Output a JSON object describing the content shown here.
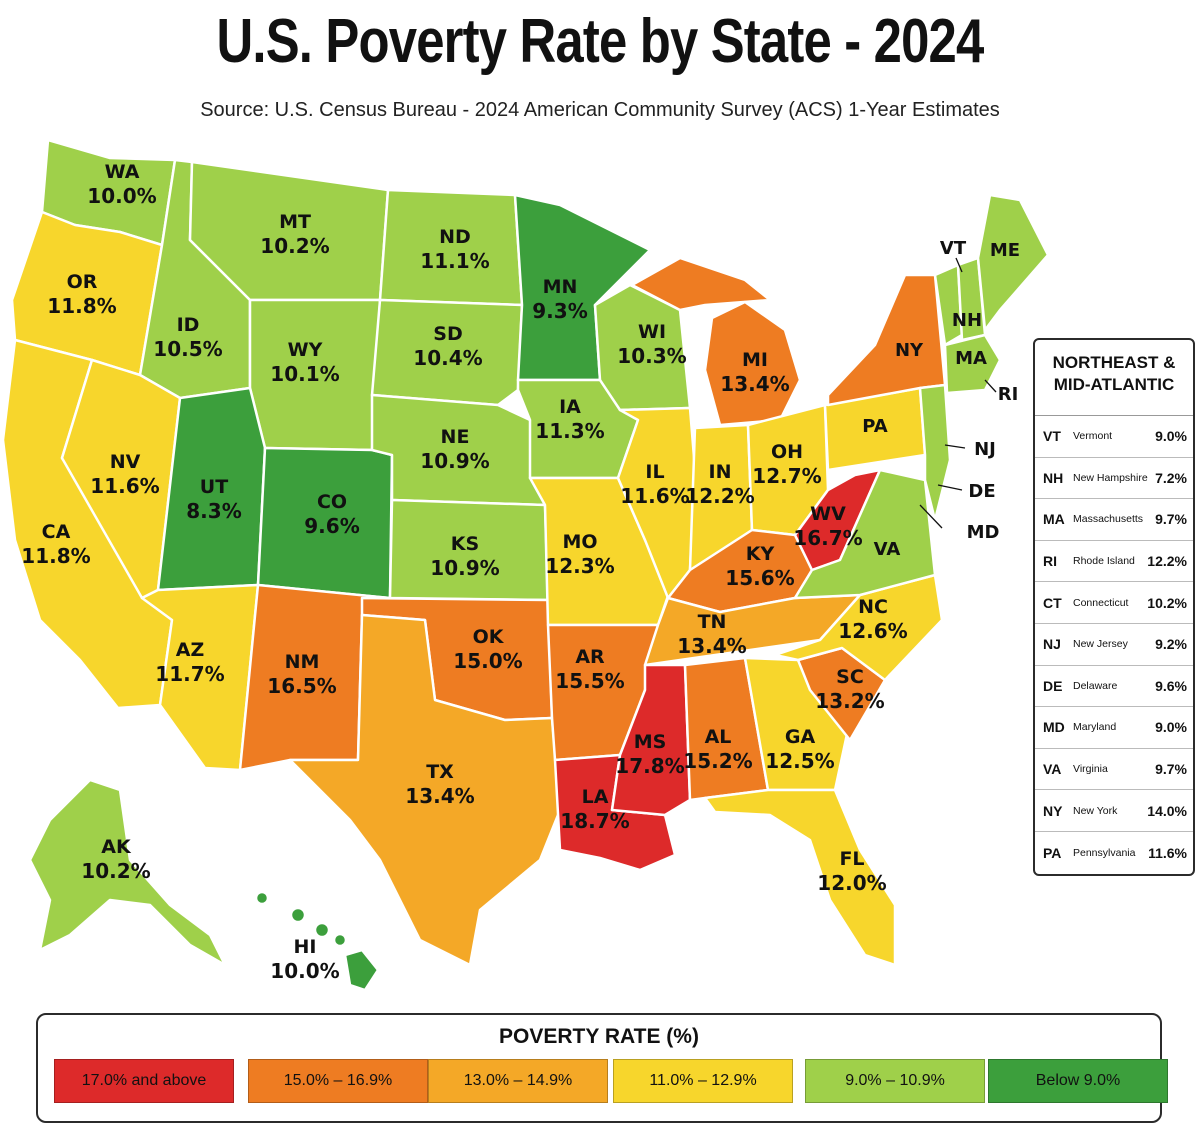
{
  "title": "U.S. Poverty Rate by State - 2024",
  "subtitle": "Source: U.S. Census Bureau - 2024 American Community Survey (ACS) 1-Year Estimates",
  "colors": {
    "c17": "#dd2a2a",
    "c15": "#ee7c22",
    "c13": "#f4a827",
    "c11": "#f7d62c",
    "c9": "#9fd04a",
    "cb9": "#3c9f3c"
  },
  "states": {
    "WA": {
      "abbr": "WA",
      "rate": "10.0%"
    },
    "OR": {
      "abbr": "OR",
      "rate": "11.8%"
    },
    "CA": {
      "abbr": "CA",
      "rate": "11.8%"
    },
    "ID": {
      "abbr": "ID",
      "rate": "10.5%"
    },
    "NV": {
      "abbr": "NV",
      "rate": "11.6%"
    },
    "MT": {
      "abbr": "MT",
      "rate": "10.2%"
    },
    "WY": {
      "abbr": "WY",
      "rate": "10.1%"
    },
    "UT": {
      "abbr": "UT",
      "rate": "8.3%"
    },
    "AZ": {
      "abbr": "AZ",
      "rate": "11.7%"
    },
    "CO": {
      "abbr": "CO",
      "rate": "9.6%"
    },
    "NM": {
      "abbr": "NM",
      "rate": "16.5%"
    },
    "ND": {
      "abbr": "ND",
      "rate": "11.1%"
    },
    "SD": {
      "abbr": "SD",
      "rate": "10.4%"
    },
    "NE": {
      "abbr": "NE",
      "rate": "10.9%"
    },
    "KS": {
      "abbr": "KS",
      "rate": "10.9%"
    },
    "OK": {
      "abbr": "OK",
      "rate": "15.0%"
    },
    "TX": {
      "abbr": "TX",
      "rate": "13.4%"
    },
    "MN": {
      "abbr": "MN",
      "rate": "9.3%"
    },
    "IA": {
      "abbr": "IA",
      "rate": "11.3%"
    },
    "MO": {
      "abbr": "MO",
      "rate": "12.3%"
    },
    "AR": {
      "abbr": "AR",
      "rate": "15.5%"
    },
    "LA": {
      "abbr": "LA",
      "rate": "18.7%"
    },
    "WI": {
      "abbr": "WI",
      "rate": "10.3%"
    },
    "IL": {
      "abbr": "IL",
      "rate": "11.6%"
    },
    "MI": {
      "abbr": "MI",
      "rate": "13.4%"
    },
    "IN": {
      "abbr": "IN",
      "rate": "12.2%"
    },
    "OH": {
      "abbr": "OH",
      "rate": "12.7%"
    },
    "KY": {
      "abbr": "KY",
      "rate": "15.6%"
    },
    "TN": {
      "abbr": "TN",
      "rate": "13.4%"
    },
    "MS": {
      "abbr": "MS",
      "rate": "17.8%"
    },
    "AL": {
      "abbr": "AL",
      "rate": "15.2%"
    },
    "GA": {
      "abbr": "GA",
      "rate": "12.5%"
    },
    "FL": {
      "abbr": "FL",
      "rate": "12.0%"
    },
    "SC": {
      "abbr": "SC",
      "rate": "13.2%"
    },
    "NC": {
      "abbr": "NC",
      "rate": "12.6%"
    },
    "WV": {
      "abbr": "WV",
      "rate": "16.7%"
    },
    "AK": {
      "abbr": "AK",
      "rate": "10.2%"
    },
    "HI": {
      "abbr": "HI",
      "rate": "10.0%"
    }
  },
  "map_labels": {
    "ME": "ME",
    "VT": "VT",
    "NH": "NH",
    "MA": "MA",
    "RI": "RI",
    "NY": "NY",
    "PA": "PA",
    "NJ": "NJ",
    "DE": "DE",
    "MD": "MD",
    "VA": "VA"
  },
  "northeast": {
    "title_line1": "NORTHEAST &",
    "title_line2": "MID-ATLANTIC",
    "rows": [
      {
        "abbr": "VT",
        "name": "Vermont",
        "rate": "9.0%"
      },
      {
        "abbr": "NH",
        "name": "New Hampshire",
        "rate": "7.2%"
      },
      {
        "abbr": "MA",
        "name": "Massachusetts",
        "rate": "9.7%"
      },
      {
        "abbr": "RI",
        "name": "Rhode Island",
        "rate": "12.2%"
      },
      {
        "abbr": "CT",
        "name": "Connecticut",
        "rate": "10.2%"
      },
      {
        "abbr": "NJ",
        "name": "New Jersey",
        "rate": "9.2%"
      },
      {
        "abbr": "DE",
        "name": "Delaware",
        "rate": "9.6%"
      },
      {
        "abbr": "MD",
        "name": "Maryland",
        "rate": "9.0%"
      },
      {
        "abbr": "VA",
        "name": "Virginia",
        "rate": "9.7%"
      },
      {
        "abbr": "NY",
        "name": "New York",
        "rate": "14.0%"
      },
      {
        "abbr": "PA",
        "name": "Pennsylvania",
        "rate": "11.6%"
      }
    ]
  },
  "legend": {
    "title": "POVERTY RATE (%)",
    "items": [
      {
        "label": "17.0% and above",
        "color": "#dd2a2a"
      },
      {
        "label": "15.0% – 16.9%",
        "color": "#ee7c22"
      },
      {
        "label": "13.0% – 14.9%",
        "color": "#f4a827"
      },
      {
        "label": "11.0% – 12.9%",
        "color": "#f7d62c"
      },
      {
        "label": "9.0% – 10.9%",
        "color": "#9fd04a"
      },
      {
        "label": "Below 9.0%",
        "color": "#3c9f3c"
      }
    ]
  }
}
